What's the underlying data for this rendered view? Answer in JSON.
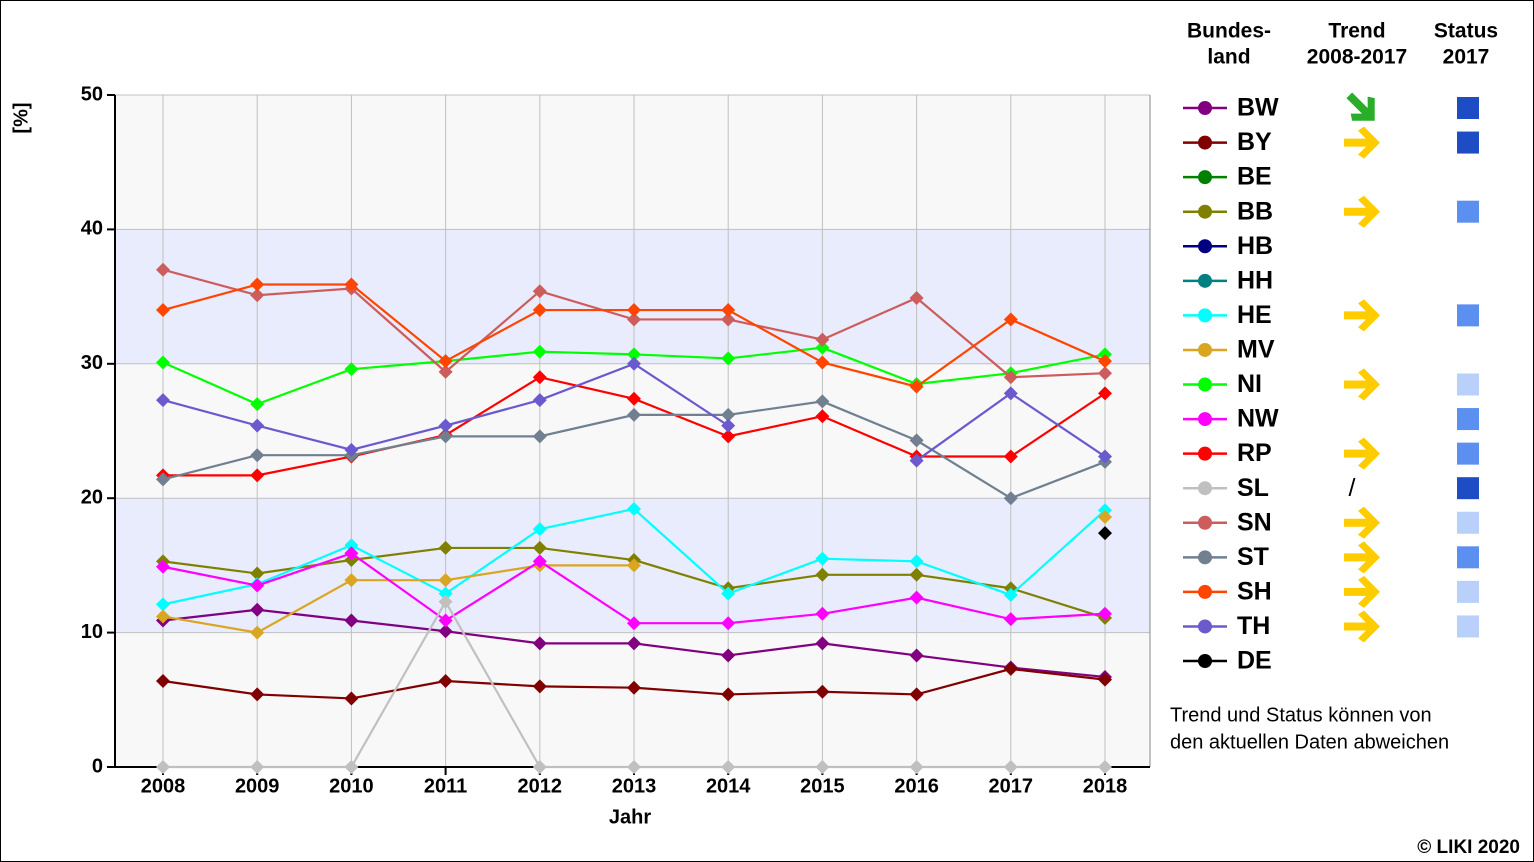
{
  "chart_data": {
    "type": "line",
    "ylabel": "[%]",
    "xlabel": "Jahr",
    "categories": [
      "2008",
      "2009",
      "2010",
      "2011",
      "2012",
      "2013",
      "2014",
      "2015",
      "2016",
      "2017",
      "2018"
    ],
    "ylim": [
      0,
      50
    ],
    "yticks": [
      0,
      10,
      20,
      30,
      40,
      50
    ],
    "grid": true,
    "bands": {
      "ranges": [
        [
          10,
          20
        ],
        [
          30,
          40
        ]
      ],
      "color": "#e8ecfc",
      "base_color": "#f8f8f8"
    },
    "legend_headers": [
      [
        "Bundes-",
        "land"
      ],
      [
        "Trend",
        "2008-2017"
      ],
      [
        "Status",
        "2017"
      ]
    ],
    "note": [
      "Trend und Status können von",
      "den aktuellen Daten abweichen"
    ],
    "copyright": "© LIKI 2020",
    "series": [
      {
        "name": "BW",
        "color": "#800080",
        "trend": {
          "color": "#2aae2a",
          "direction": "down"
        },
        "status": "#1e4cc4",
        "values": [
          10.9,
          11.7,
          10.9,
          10.1,
          9.2,
          9.2,
          8.3,
          9.2,
          8.3,
          7.4,
          6.7
        ]
      },
      {
        "name": "BY",
        "color": "#800000",
        "trend": {
          "color": "#ffcc00",
          "direction": "right"
        },
        "status": "#1e4cc4",
        "values": [
          6.4,
          5.4,
          5.1,
          6.4,
          6.0,
          5.9,
          5.4,
          5.6,
          5.4,
          7.3,
          6.5
        ]
      },
      {
        "name": "BE",
        "color": "#008000",
        "values": [
          null,
          null,
          null,
          null,
          null,
          null,
          null,
          null,
          null,
          null,
          null
        ]
      },
      {
        "name": "BB",
        "color": "#808000",
        "trend": {
          "color": "#ffcc00",
          "direction": "right"
        },
        "status": "#5b8ff0",
        "values": [
          15.3,
          14.4,
          15.4,
          16.3,
          16.3,
          15.4,
          13.3,
          14.3,
          14.3,
          13.3,
          11.1
        ]
      },
      {
        "name": "HB",
        "color": "#000080",
        "values": [
          null,
          null,
          null,
          null,
          null,
          null,
          null,
          null,
          null,
          null,
          null
        ]
      },
      {
        "name": "HH",
        "color": "#008080",
        "values": [
          null,
          null,
          null,
          null,
          null,
          null,
          null,
          null,
          null,
          null,
          null
        ]
      },
      {
        "name": "HE",
        "color": "#00ffff",
        "trend": {
          "color": "#ffcc00",
          "direction": "right"
        },
        "status": "#5b8ff0",
        "values": [
          12.1,
          13.6,
          16.5,
          12.9,
          17.7,
          19.2,
          12.9,
          15.5,
          15.3,
          12.8,
          19.1
        ]
      },
      {
        "name": "MV",
        "color": "#daa520",
        "values": [
          11.2,
          10.0,
          13.9,
          13.9,
          15.0,
          15.0,
          null,
          null,
          null,
          null,
          18.6
        ]
      },
      {
        "name": "NI",
        "color": "#00ff00",
        "trend": {
          "color": "#ffcc00",
          "direction": "right"
        },
        "status": "#b8d0fa",
        "values": [
          30.1,
          27.0,
          29.6,
          30.2,
          30.9,
          30.7,
          30.4,
          31.2,
          28.5,
          29.3,
          30.7
        ]
      },
      {
        "name": "NW",
        "color": "#ff00ff",
        "status": "#5b8ff0",
        "values": [
          14.9,
          13.5,
          15.9,
          10.9,
          15.3,
          10.7,
          10.7,
          11.4,
          12.6,
          11.0,
          11.4
        ]
      },
      {
        "name": "RP",
        "color": "#ff0000",
        "trend": {
          "color": "#ffcc00",
          "direction": "right"
        },
        "status": "#5b8ff0",
        "values": [
          21.7,
          21.7,
          23.1,
          24.7,
          29.0,
          27.4,
          24.6,
          26.1,
          23.1,
          23.1,
          27.8
        ]
      },
      {
        "name": "SL",
        "color": "#c0c0c0",
        "trend_label": "/",
        "status": "#1e4cc4",
        "values": [
          0,
          0,
          0,
          12.3,
          0,
          0,
          0,
          0,
          0,
          0,
          0
        ]
      },
      {
        "name": "SN",
        "color": "#cd5c5c",
        "trend": {
          "color": "#ffcc00",
          "direction": "right"
        },
        "status": "#b8d0fa",
        "values": [
          37.0,
          35.1,
          35.6,
          29.4,
          35.4,
          33.3,
          33.3,
          31.8,
          34.9,
          29.0,
          29.3
        ]
      },
      {
        "name": "ST",
        "color": "#708090",
        "trend": {
          "color": "#ffcc00",
          "direction": "right"
        },
        "status": "#5b8ff0",
        "values": [
          21.4,
          23.2,
          23.2,
          24.6,
          24.6,
          26.2,
          26.2,
          27.2,
          24.3,
          20.0,
          22.7
        ]
      },
      {
        "name": "SH",
        "color": "#ff4500",
        "trend": {
          "color": "#ffcc00",
          "direction": "right"
        },
        "status": "#b8d0fa",
        "values": [
          34.0,
          35.9,
          35.9,
          30.2,
          34.0,
          34.0,
          34.0,
          30.1,
          28.3,
          33.3,
          30.2
        ]
      },
      {
        "name": "TH",
        "color": "#6a5acd",
        "trend": {
          "color": "#ffcc00",
          "direction": "right"
        },
        "status": "#b8d0fa",
        "values": [
          27.3,
          25.4,
          23.6,
          25.4,
          27.3,
          30.0,
          25.4,
          null,
          22.8,
          27.8,
          23.1
        ]
      },
      {
        "name": "DE",
        "color": "#000000",
        "values": [
          null,
          null,
          null,
          null,
          null,
          null,
          null,
          null,
          null,
          null,
          17.4
        ]
      }
    ]
  }
}
